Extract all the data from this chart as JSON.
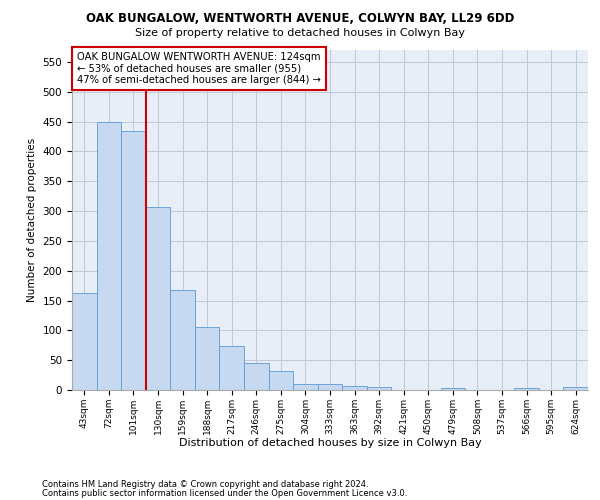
{
  "title": "OAK BUNGALOW, WENTWORTH AVENUE, COLWYN BAY, LL29 6DD",
  "subtitle": "Size of property relative to detached houses in Colwyn Bay",
  "xlabel": "Distribution of detached houses by size in Colwyn Bay",
  "ylabel": "Number of detached properties",
  "categories": [
    "43sqm",
    "72sqm",
    "101sqm",
    "130sqm",
    "159sqm",
    "188sqm",
    "217sqm",
    "246sqm",
    "275sqm",
    "304sqm",
    "333sqm",
    "363sqm",
    "392sqm",
    "421sqm",
    "450sqm",
    "479sqm",
    "508sqm",
    "537sqm",
    "566sqm",
    "595sqm",
    "624sqm"
  ],
  "values": [
    163,
    450,
    435,
    307,
    167,
    106,
    74,
    45,
    32,
    10,
    10,
    7,
    5,
    0,
    0,
    4,
    0,
    0,
    4,
    0,
    5
  ],
  "bar_color": "#c6d9f0",
  "bar_edge_color": "#5b9bd5",
  "redline_x": 2.5,
  "annotation_text": "OAK BUNGALOW WENTWORTH AVENUE: 124sqm\n← 53% of detached houses are smaller (955)\n47% of semi-detached houses are larger (844) →",
  "annotation_box_color": "#ffffff",
  "annotation_box_edge": "#cc0000",
  "ylim": [
    0,
    570
  ],
  "yticks": [
    0,
    50,
    100,
    150,
    200,
    250,
    300,
    350,
    400,
    450,
    500,
    550
  ],
  "grid_color": "#c0c8d8",
  "bg_color": "#e8eef8",
  "footer_line1": "Contains HM Land Registry data © Crown copyright and database right 2024.",
  "footer_line2": "Contains public sector information licensed under the Open Government Licence v3.0."
}
